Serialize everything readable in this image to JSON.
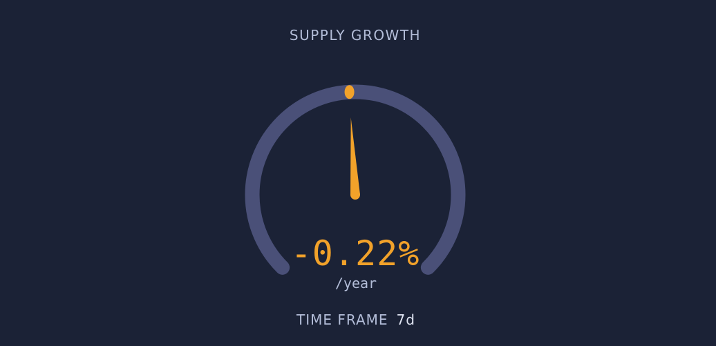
{
  "widget": {
    "title": "SUPPLY GROWTH",
    "value_text": "-0.22%",
    "unit": "/year",
    "timeframe_label": "TIME FRAME",
    "timeframe_value": "7d"
  },
  "gauge": {
    "value_fraction": 0.488,
    "colors": {
      "track": "#4a5078",
      "needle": "#f2a22a",
      "marker": "#f2a22a",
      "background": "#1b2236"
    }
  }
}
